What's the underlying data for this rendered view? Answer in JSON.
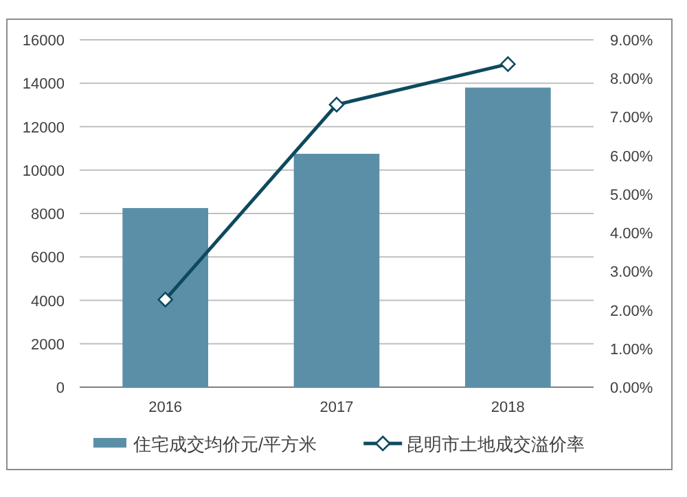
{
  "chart_data": {
    "type": "bar",
    "categories": [
      "2016",
      "2017",
      "2018"
    ],
    "series": [
      {
        "name": "住宅成交均价元/平方米",
        "color": "#5b8fa8",
        "values": [
          8250,
          10750,
          13800
        ]
      },
      {
        "name": "昆明市土地成交溢价率",
        "type": "line",
        "axis": "y2",
        "color": "#0d4a5e",
        "values": [
          2.27,
          7.32,
          8.37
        ]
      }
    ],
    "ylim": [
      0,
      16000
    ],
    "yticks": [
      0,
      2000,
      4000,
      6000,
      8000,
      10000,
      12000,
      14000,
      16000
    ],
    "y2lim": [
      0,
      9
    ],
    "y2ticks": [
      {
        "value": 0,
        "label": "0.00%"
      },
      {
        "value": 1,
        "label": "1.00%"
      },
      {
        "value": 2,
        "label": "2.00%"
      },
      {
        "value": 3,
        "label": "3.00%"
      },
      {
        "value": 4,
        "label": "4.00%"
      },
      {
        "value": 5,
        "label": "5.00%"
      },
      {
        "value": 6,
        "label": "6.00%"
      },
      {
        "value": 7,
        "label": "7.00%"
      },
      {
        "value": 8,
        "label": "8.00%"
      },
      {
        "value": 9,
        "label": "9.00%"
      }
    ],
    "grid": "y",
    "legend": "bottom",
    "marker": "diamond"
  }
}
